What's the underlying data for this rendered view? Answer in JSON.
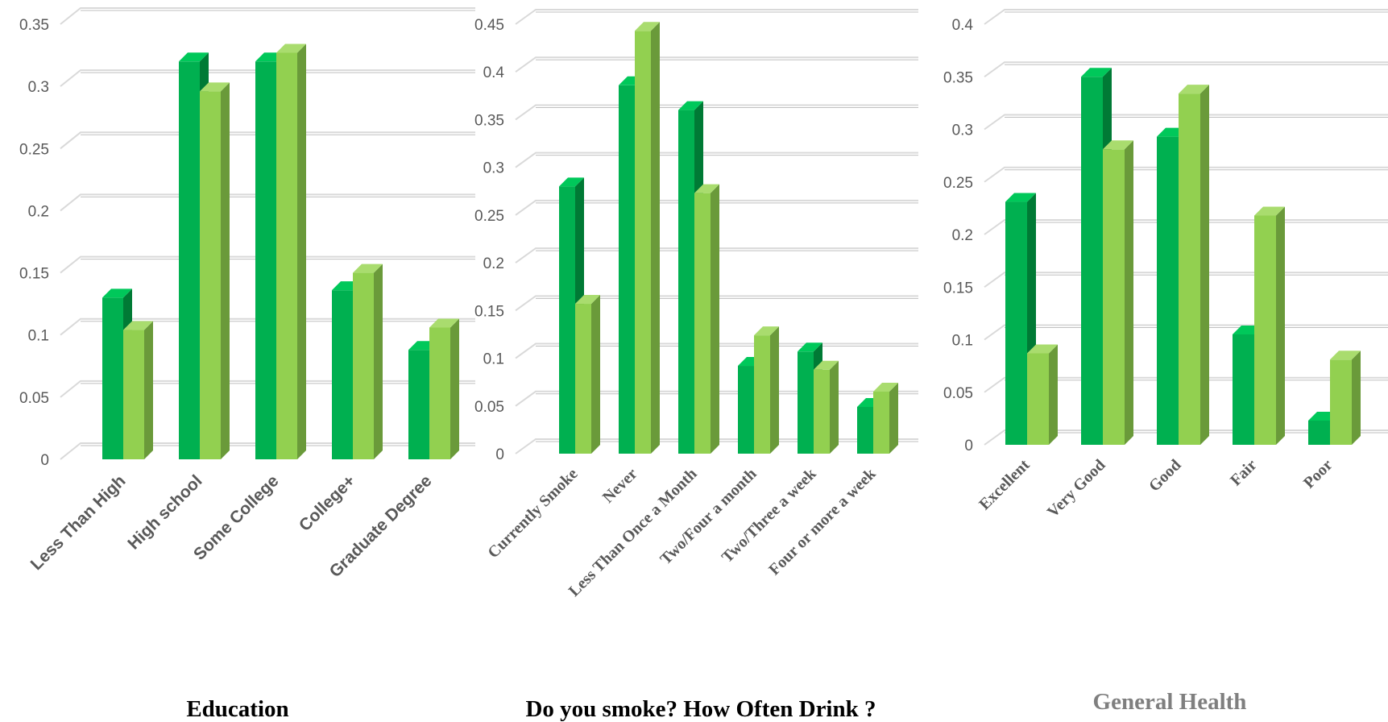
{
  "colors": {
    "series1": {
      "front": "#00b050",
      "side": "#007a35",
      "top": "#00c85a"
    },
    "series2": {
      "front": "#92d050",
      "side": "#6a9a3a",
      "top": "#a9dc6e"
    },
    "title_dark": "#000000",
    "title_gray": "#7f7f7f",
    "gridline": "#d9d9d9"
  },
  "chart_data": [
    {
      "type": "bar",
      "title": "Education",
      "categories": [
        "Less Than High",
        "High school",
        "Some College",
        "College+",
        "Graduate Degree"
      ],
      "series": [
        {
          "values": [
            0.13,
            0.32,
            0.32,
            0.136,
            0.088
          ]
        },
        {
          "values": [
            0.104,
            0.296,
            0.327,
            0.15,
            0.106
          ]
        }
      ],
      "ylim": [
        0,
        0.35
      ],
      "yticks": [
        "0",
        "0.05",
        "0.1",
        "0.15",
        "0.2",
        "0.25",
        "0.3",
        "0.35"
      ],
      "grid": true
    },
    {
      "type": "bar",
      "title": "Do you smoke? How Often Drink ?",
      "categories": [
        "Currently Smoke",
        "Never",
        "Less Than Once a Month",
        "Two/Four a month",
        "Two/Three  a week",
        "Four or more a week"
      ],
      "series": [
        {
          "values": [
            0.28,
            0.386,
            0.36,
            0.092,
            0.107,
            0.049
          ]
        },
        {
          "values": [
            0.157,
            0.443,
            0.273,
            0.124,
            0.088,
            0.065
          ]
        }
      ],
      "ylim": [
        0,
        0.45
      ],
      "yticks": [
        "0",
        "0.05",
        "0.1",
        "0.15",
        "0.2",
        "0.25",
        "0.3",
        "0.35",
        "0.4",
        "0.45"
      ],
      "grid": true
    },
    {
      "type": "bar",
      "title": "General Health",
      "categories": [
        "Excellent",
        "Very Good",
        "Good",
        "Fair",
        "Poor"
      ],
      "series": [
        {
          "values": [
            0.231,
            0.35,
            0.293,
            0.105,
            0.023
          ]
        },
        {
          "values": [
            0.087,
            0.281,
            0.334,
            0.218,
            0.081
          ]
        }
      ],
      "ylim": [
        0,
        0.4
      ],
      "yticks": [
        "0",
        "0.05",
        "0.1",
        "0.15",
        "0.2",
        "0.25",
        "0.3",
        "0.35",
        "0.4"
      ],
      "grid": true
    }
  ]
}
